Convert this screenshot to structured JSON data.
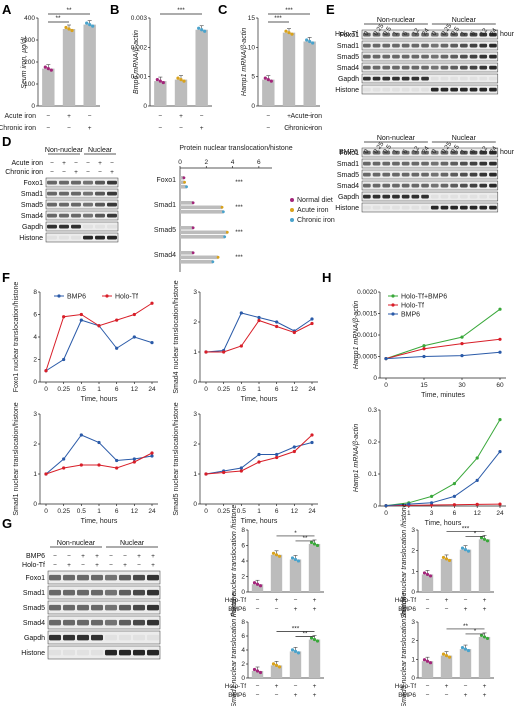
{
  "colors": {
    "normal": "#a3257a",
    "acute": "#d9a21b",
    "chronic": "#4aa3cc",
    "bmp6": "#2a5aa8",
    "holotf": "#d81e28",
    "combo": "#39a83a",
    "bar": "#bcbcbc"
  },
  "panel_letters": [
    "A",
    "B",
    "C",
    "D",
    "E",
    "F",
    "G",
    "H"
  ],
  "iron_row_labels": [
    "Acute iron",
    "Chronic iron"
  ],
  "iron_signs": [
    [
      "−",
      "+",
      "−"
    ],
    [
      "−",
      "−",
      "+"
    ]
  ],
  "bmp_row_labels": [
    "Holo-Tf",
    "BMP6"
  ],
  "bmp_signs": [
    [
      "−",
      "+",
      "−",
      "+"
    ],
    [
      "−",
      "−",
      "+",
      "+"
    ]
  ],
  "sig": {
    "A": [
      "**",
      "**"
    ],
    "B": [
      "***"
    ],
    "C": [
      "***",
      "***"
    ]
  },
  "chart_data": [
    {
      "id": "A",
      "type": "bar",
      "ylabel": "Seum iron, µg/dL",
      "yticks": [
        0,
        100,
        200,
        300,
        400
      ],
      "ylim": [
        0,
        400
      ],
      "values": [
        170,
        350,
        370
      ]
    },
    {
      "id": "B",
      "type": "bar",
      "ylabel": "Bmp6 mRNA/β-actin",
      "yticks": [
        "0",
        "0.001",
        "0.002",
        "0.003"
      ],
      "ylim": [
        0,
        0.003
      ],
      "values": [
        0.00085,
        0.0009,
        0.0026
      ]
    },
    {
      "id": "C",
      "type": "bar",
      "ylabel": "Hamp1 mRNA/β-actin",
      "yticks": [
        0,
        5,
        10,
        15
      ],
      "ylim": [
        0,
        15
      ],
      "values": [
        4.5,
        12.5,
        11
      ]
    },
    {
      "id": "D",
      "type": "hbar",
      "title": "Protein nuclear translocation/histone",
      "xticks": [
        0,
        2,
        4,
        6
      ],
      "xlim": [
        0,
        7
      ],
      "categories": [
        "Foxo1",
        "Smad1",
        "Smad5",
        "Smad4"
      ],
      "series": [
        {
          "name": "Normal diet",
          "values": [
            0.3,
            1.0,
            1.0,
            1.0
          ]
        },
        {
          "name": "Acute iron",
          "values": [
            0.35,
            3.2,
            3.6,
            2.9
          ]
        },
        {
          "name": "Chronic iron",
          "values": [
            0.5,
            3.3,
            3.4,
            2.5
          ]
        }
      ],
      "sig": [
        "***",
        "***",
        "***",
        "***"
      ]
    },
    {
      "id": "F1",
      "type": "line",
      "ylabel": "Foxo1 nuclear translocation/histone",
      "xlabel": "Time, hours",
      "x": [
        "0",
        "0.25",
        "0.5",
        "1",
        "6",
        "12",
        "24"
      ],
      "yticks": [
        0,
        2,
        4,
        6,
        8
      ],
      "ylim": [
        0,
        8
      ],
      "series": [
        {
          "name": "BMP6",
          "values": [
            1,
            2,
            5.5,
            5,
            3,
            4,
            3.5
          ]
        },
        {
          "name": "Holo-Tf",
          "values": [
            1,
            5.8,
            6,
            5,
            5.5,
            6,
            7
          ]
        }
      ]
    },
    {
      "id": "F2",
      "type": "line",
      "ylabel": "Smad4 nuclear translocation/histone",
      "xlabel": "Time, hours",
      "x": [
        "0",
        "0.25",
        "0.5",
        "1",
        "6",
        "12",
        "24"
      ],
      "yticks": [
        0,
        1,
        2,
        3
      ],
      "ylim": [
        0,
        3
      ],
      "series": [
        {
          "name": "BMP6",
          "values": [
            1,
            1.05,
            2.3,
            2.15,
            2.0,
            1.7,
            2.1
          ]
        },
        {
          "name": "Holo-Tf",
          "values": [
            1,
            1.0,
            1.2,
            2.05,
            1.85,
            1.65,
            1.95
          ]
        }
      ]
    },
    {
      "id": "F3",
      "type": "line",
      "ylabel": "Smad1 nuclear translocation/histone",
      "xlabel": "Time, hours",
      "x": [
        "0",
        "0.25",
        "0.5",
        "1",
        "6",
        "12",
        "24"
      ],
      "yticks": [
        0,
        1,
        2,
        3
      ],
      "ylim": [
        0,
        3
      ],
      "series": [
        {
          "name": "BMP6",
          "values": [
            1,
            1.5,
            2.3,
            2.05,
            1.45,
            1.5,
            1.6
          ]
        },
        {
          "name": "Holo-Tf",
          "values": [
            1,
            1.2,
            1.3,
            1.3,
            1.2,
            1.4,
            1.7
          ]
        }
      ]
    },
    {
      "id": "F4",
      "type": "line",
      "ylabel": "Smad5 nuclear translocation/histone",
      "xlabel": "Time, hours",
      "x": [
        "0",
        "0.25",
        "0.5",
        "1",
        "6",
        "12",
        "24"
      ],
      "yticks": [
        0,
        1,
        2,
        3
      ],
      "ylim": [
        0,
        3
      ],
      "series": [
        {
          "name": "BMP6",
          "values": [
            1,
            1.1,
            1.2,
            1.65,
            1.65,
            1.9,
            2.05
          ]
        },
        {
          "name": "Holo-Tf",
          "values": [
            1,
            1.05,
            1.1,
            1.4,
            1.55,
            1.75,
            2.3
          ]
        }
      ]
    },
    {
      "id": "H1",
      "type": "line",
      "ylabel": "Hamp1 mRNA/β-actin",
      "xlabel": "Time, minutes",
      "x": [
        "0",
        "15",
        "30",
        "60"
      ],
      "yticks": [
        "0",
        "0.0005",
        "0.0010",
        "0.0015",
        "0.0020"
      ],
      "ylim": [
        0,
        0.002
      ],
      "series": [
        {
          "name": "Holo-Tf+BMP6",
          "values": [
            0.00045,
            0.00075,
            0.00095,
            0.0016
          ]
        },
        {
          "name": "Holo-Tf",
          "values": [
            0.00045,
            0.00068,
            0.0008,
            0.0009
          ]
        },
        {
          "name": "BMP6",
          "values": [
            0.00045,
            0.0005,
            0.00052,
            0.0006
          ]
        }
      ]
    },
    {
      "id": "H2",
      "type": "line",
      "ylabel": "Hamp1 mRNA/β-actin",
      "xlabel": "Time, hours",
      "x": [
        "0",
        "1",
        "3",
        "6",
        "12",
        "24"
      ],
      "yticks": [
        "0",
        "0.1",
        "0.2",
        "0.3"
      ],
      "ylim": [
        0,
        0.3
      ],
      "series": [
        {
          "name": "Holo-Tf+BMP6",
          "values": [
            0.001,
            0.01,
            0.03,
            0.07,
            0.15,
            0.27
          ]
        },
        {
          "name": "Holo-Tf",
          "values": [
            0.001,
            0.002,
            0.003,
            0.004,
            0.005,
            0.006
          ]
        },
        {
          "name": "BMP6",
          "values": [
            0.001,
            0.006,
            0.01,
            0.03,
            0.08,
            0.17
          ]
        }
      ]
    },
    {
      "id": "G1",
      "type": "bar",
      "ylabel": "Foxo1 nuclear translocation /histone",
      "yticks": [
        0,
        2,
        4,
        6,
        8
      ],
      "ylim": [
        0,
        8
      ],
      "values": [
        1,
        4.8,
        4.2,
        6.2
      ],
      "sig": [
        "*",
        "**"
      ]
    },
    {
      "id": "G2",
      "type": "bar",
      "ylabel": "Smad4 nuclear translocation /histone",
      "yticks": [
        0,
        1,
        2,
        3
      ],
      "ylim": [
        0,
        3
      ],
      "values": [
        0.85,
        1.6,
        2.05,
        2.55
      ],
      "sig": [
        "***",
        "*"
      ]
    },
    {
      "id": "G3",
      "type": "bar",
      "ylabel": "Smad1 nuclear translocation /histone",
      "yticks": [
        0,
        2,
        4,
        6,
        8
      ],
      "ylim": [
        0,
        8
      ],
      "values": [
        1,
        1.8,
        3.8,
        5.5
      ],
      "sig": [
        "***",
        "**"
      ]
    },
    {
      "id": "G4",
      "type": "bar",
      "ylabel": "Smad5 nuclear translocation /histone",
      "yticks": [
        0,
        1,
        2,
        3
      ],
      "ylim": [
        0,
        3
      ],
      "values": [
        0.9,
        1.2,
        1.55,
        2.2
      ],
      "sig": [
        "**",
        "*"
      ]
    }
  ],
  "blot_D": {
    "groups": [
      "Non-nuclear",
      "Nuclear"
    ],
    "rows": [
      "Foxo1",
      "Smad1",
      "Smad5",
      "Smad4",
      "Gapdh",
      "Histone"
    ]
  },
  "blot_E": {
    "groups": [
      "Non-nuclear",
      "Nuclear"
    ],
    "times": [
      "0",
      "0.25",
      "0.5",
      "1",
      "6",
      "12",
      "24"
    ],
    "time_unit": "hour",
    "top_treat": "Holo-Tf",
    "bottom_treat": "BMP6",
    "rows": [
      "Foxo1",
      "Smad1",
      "Smad5",
      "Smad4",
      "Gapdh",
      "Histone"
    ]
  },
  "blot_G": {
    "groups": [
      "Non-nuclear",
      "Nuclear"
    ],
    "rows": [
      "Foxo1",
      "Smad1",
      "Smad5",
      "Smad4",
      "Gapdh",
      "Histone"
    ]
  },
  "legend_D": [
    "Normal diet",
    "Acute iron",
    "Chronic iron"
  ]
}
